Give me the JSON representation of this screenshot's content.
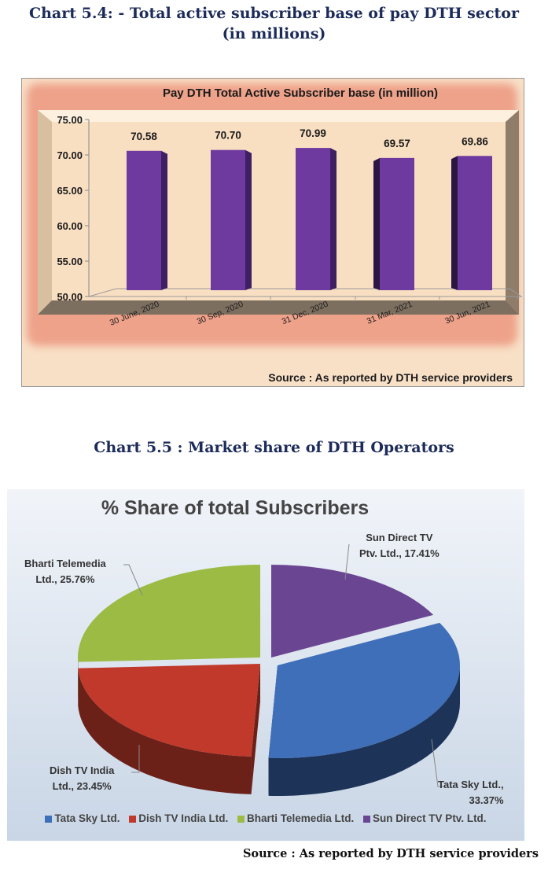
{
  "headings": {
    "chart1": "Chart 5.4: - Total active subscriber base of pay DTH sector",
    "chart1_line2": "(in millions)",
    "chart2": "Chart 5.5 : Market share of DTH Operators"
  },
  "footer_source": "Source : As reported by DTH service providers",
  "chart_data": [
    {
      "type": "bar",
      "title": "Pay DTH  Total Active Subscriber base (in million)",
      "categories": [
        "30 June, 2020",
        "30 Sep, 2020",
        "31 Dec, 2020",
        "31 Mar, 2021",
        "30 Jun, 2021"
      ],
      "values": [
        70.58,
        70.7,
        70.99,
        69.57,
        69.86
      ],
      "value_labels": [
        "70.58",
        "70.70",
        "70.99",
        "69.57",
        "69.86"
      ],
      "xlabel": "",
      "ylabel": "",
      "ylim": [
        50,
        75
      ],
      "yticks": [
        "75.00",
        "70.00",
        "65.00",
        "60.00",
        "55.00",
        "50.00"
      ],
      "grid": false,
      "bar_color": "#6e3aa0",
      "background": "#f8e0c7",
      "source_note": "Source : As reported by DTH service providers"
    },
    {
      "type": "pie",
      "title": "% Share of total Subscribers",
      "categories": [
        "Tata Sky Ltd.",
        "Dish TV India Ltd.",
        "Bharti Telemedia Ltd.",
        "Sun Direct TV Ptv. Ltd."
      ],
      "values": [
        33.37,
        23.45,
        25.76,
        17.41
      ],
      "data_labels": [
        {
          "line1": "Tata Sky Ltd.,",
          "line2": "33.37%"
        },
        {
          "line1": "Dish TV India",
          "line2": "Ltd., 23.45%"
        },
        {
          "line1": "Bharti Telemedia",
          "line2": "Ltd., 25.76%"
        },
        {
          "line1": "Sun Direct TV",
          "line2": "Ptv. Ltd., 17.41%"
        }
      ],
      "colors": [
        "#3f6fb8",
        "#c0392b",
        "#9bbb45",
        "#6a4592"
      ],
      "legend": [
        "Tata Sky Ltd.",
        "Dish TV India Ltd.",
        "Bharti Telemedia Ltd.",
        "Sun Direct TV Ptv. Ltd."
      ],
      "legend_position": "bottom",
      "style": "3d-exploded"
    }
  ]
}
